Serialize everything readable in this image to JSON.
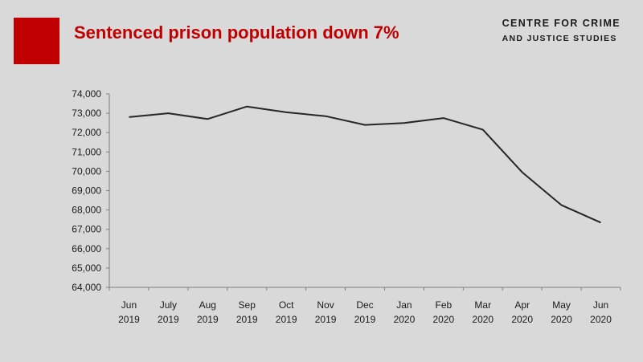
{
  "header": {
    "title": "Sentenced prison population down 7%",
    "org_line1": "CENTRE FOR CRIME",
    "org_line2": "AND JUSTICE STUDIES",
    "accent_color": "#c00000"
  },
  "chart_data": {
    "type": "line",
    "title": "Sentenced prison population down 7%",
    "xlabel": "",
    "ylabel": "",
    "ylim": [
      64000,
      74000
    ],
    "yticks": [
      64000,
      65000,
      66000,
      67000,
      68000,
      69000,
      70000,
      71000,
      72000,
      73000,
      74000
    ],
    "ytick_labels": [
      "64,000",
      "65,000",
      "66,000",
      "67,000",
      "68,000",
      "69,000",
      "70,000",
      "71,000",
      "72,000",
      "73,000",
      "74,000"
    ],
    "categories": [
      [
        "Jun",
        "2019"
      ],
      [
        "July",
        "2019"
      ],
      [
        "Aug",
        "2019"
      ],
      [
        "Sep",
        "2019"
      ],
      [
        "Oct",
        "2019"
      ],
      [
        "Nov",
        "2019"
      ],
      [
        "Dec",
        "2019"
      ],
      [
        "Jan",
        "2020"
      ],
      [
        "Feb",
        "2020"
      ],
      [
        "Mar",
        "2020"
      ],
      [
        "Apr",
        "2020"
      ],
      [
        "May",
        "2020"
      ],
      [
        "Jun",
        "2020"
      ]
    ],
    "series": [
      {
        "values": [
          72800,
          73000,
          72700,
          73350,
          73050,
          72850,
          72400,
          72500,
          72750,
          72150,
          69950,
          68250,
          67350
        ],
        "color": "#262626"
      }
    ],
    "grid": false,
    "legend": "none"
  }
}
